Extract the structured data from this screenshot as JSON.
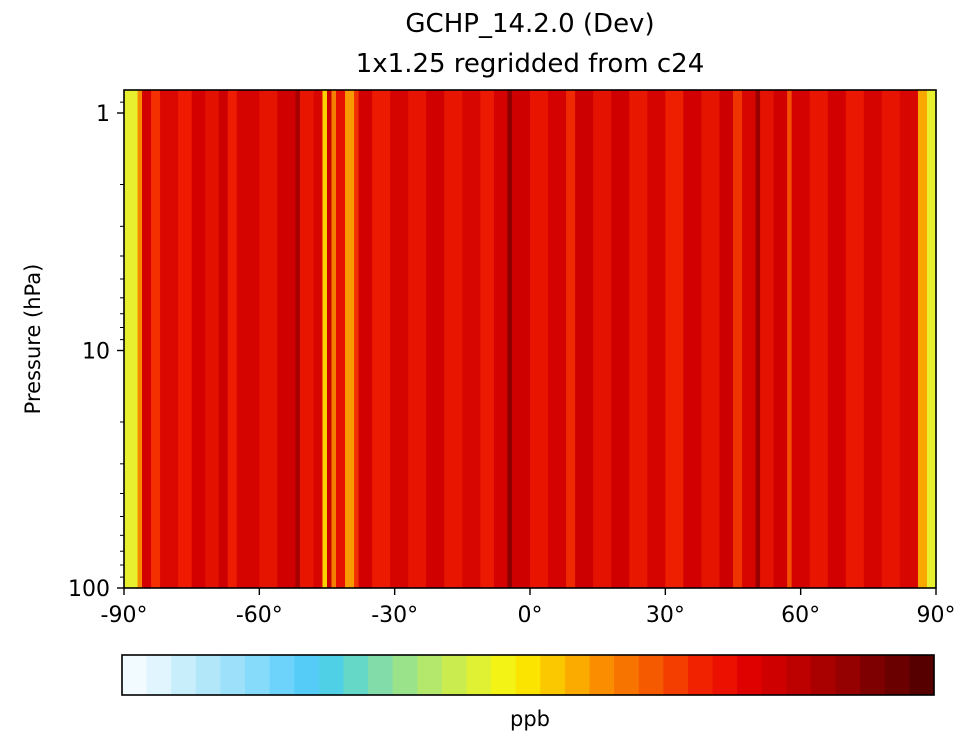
{
  "chart_data": {
    "type": "heatmap",
    "title": "GCHP_14.2.0 (Dev)",
    "subtitle": "1x1.25 regridded from c24",
    "xlabel": "",
    "ylabel": "Pressure (hPa)",
    "x_scale": "linear",
    "y_scale": "log",
    "xlim": [
      -90,
      90
    ],
    "ylim": [
      100,
      0.8
    ],
    "x_ticks": [
      -90,
      -60,
      -30,
      0,
      30,
      60,
      90
    ],
    "x_tick_labels": [
      "-90°",
      "-60°",
      "-30°",
      "0°",
      "30°",
      "60°",
      "90°"
    ],
    "y_ticks": [
      1,
      10,
      100
    ],
    "y_tick_labels": [
      "1",
      "10",
      "100"
    ],
    "grid": false,
    "colorbar": {
      "label": "ppb",
      "orientation": "horizontal",
      "location": "bottom",
      "colors": [
        "#f2fbff",
        "#e0f5fd",
        "#c9eefb",
        "#b2e7fa",
        "#9ce0f9",
        "#86dafa",
        "#6dd3fa",
        "#55ccf8",
        "#4fd0e6",
        "#66d8c8",
        "#82dca9",
        "#9be38a",
        "#b3e86c",
        "#cbec4f",
        "#e0f032",
        "#f3f315",
        "#fbe400",
        "#fbc800",
        "#fbaa00",
        "#fb8e00",
        "#f87400",
        "#f55a00",
        "#f33e00",
        "#f02200",
        "#ec1000",
        "#df0000",
        "#cf0000",
        "#bd0000",
        "#a90000",
        "#950000",
        "#7f0000",
        "#6a0000",
        "#560000"
      ]
    },
    "columns": [
      {
        "lon_start": -90,
        "lon_end": -87,
        "color": "#e8ef2e"
      },
      {
        "lon_start": -87,
        "lon_end": -86,
        "color": "#f58a00"
      },
      {
        "lon_start": -86,
        "lon_end": -84,
        "color": "#d20000"
      },
      {
        "lon_start": -84,
        "lon_end": -82,
        "color": "#f53000"
      },
      {
        "lon_start": -82,
        "lon_end": -78,
        "color": "#da0800"
      },
      {
        "lon_start": -78,
        "lon_end": -75,
        "color": "#ef1a00"
      },
      {
        "lon_start": -75,
        "lon_end": -72,
        "color": "#d40000"
      },
      {
        "lon_start": -72,
        "lon_end": -69,
        "color": "#e31200"
      },
      {
        "lon_start": -69,
        "lon_end": -67,
        "color": "#cc0000"
      },
      {
        "lon_start": -67,
        "lon_end": -65,
        "color": "#ee1c00"
      },
      {
        "lon_start": -65,
        "lon_end": -60,
        "color": "#d60400"
      },
      {
        "lon_start": -60,
        "lon_end": -56,
        "color": "#e51400"
      },
      {
        "lon_start": -56,
        "lon_end": -52,
        "color": "#d00000"
      },
      {
        "lon_start": -52,
        "lon_end": -51,
        "color": "#a60000"
      },
      {
        "lon_start": -51,
        "lon_end": -48,
        "color": "#e81600"
      },
      {
        "lon_start": -48,
        "lon_end": -46,
        "color": "#d80600"
      },
      {
        "lon_start": -46,
        "lon_end": -45,
        "color": "#fbd200"
      },
      {
        "lon_start": -45,
        "lon_end": -44,
        "color": "#c80000"
      },
      {
        "lon_start": -44,
        "lon_end": -43,
        "color": "#f58000"
      },
      {
        "lon_start": -43,
        "lon_end": -41,
        "color": "#e61000"
      },
      {
        "lon_start": -41,
        "lon_end": -39,
        "color": "#f89a00"
      },
      {
        "lon_start": -39,
        "lon_end": -38,
        "color": "#f03000"
      },
      {
        "lon_start": -38,
        "lon_end": -35,
        "color": "#d20000"
      },
      {
        "lon_start": -35,
        "lon_end": -31,
        "color": "#eb1a00"
      },
      {
        "lon_start": -31,
        "lon_end": -27,
        "color": "#d60400"
      },
      {
        "lon_start": -27,
        "lon_end": -23,
        "color": "#e61400"
      },
      {
        "lon_start": -23,
        "lon_end": -19,
        "color": "#d00000"
      },
      {
        "lon_start": -19,
        "lon_end": -15,
        "color": "#e81600"
      },
      {
        "lon_start": -15,
        "lon_end": -11,
        "color": "#d80600"
      },
      {
        "lon_start": -11,
        "lon_end": -8,
        "color": "#ec1a00"
      },
      {
        "lon_start": -8,
        "lon_end": -5,
        "color": "#d40200"
      },
      {
        "lon_start": -5,
        "lon_end": -4,
        "color": "#8a0000"
      },
      {
        "lon_start": -4,
        "lon_end": 0,
        "color": "#cf0000"
      },
      {
        "lon_start": 0,
        "lon_end": 4,
        "color": "#e81400"
      },
      {
        "lon_start": 4,
        "lon_end": 8,
        "color": "#d40200"
      },
      {
        "lon_start": 8,
        "lon_end": 10,
        "color": "#f02a00"
      },
      {
        "lon_start": 10,
        "lon_end": 14,
        "color": "#cc0000"
      },
      {
        "lon_start": 14,
        "lon_end": 18,
        "color": "#e41200"
      },
      {
        "lon_start": 18,
        "lon_end": 22,
        "color": "#d00000"
      },
      {
        "lon_start": 22,
        "lon_end": 26,
        "color": "#e81800"
      },
      {
        "lon_start": 26,
        "lon_end": 30,
        "color": "#d60400"
      },
      {
        "lon_start": 30,
        "lon_end": 34,
        "color": "#ee1e00"
      },
      {
        "lon_start": 34,
        "lon_end": 38,
        "color": "#d20000"
      },
      {
        "lon_start": 38,
        "lon_end": 42,
        "color": "#e51400"
      },
      {
        "lon_start": 42,
        "lon_end": 45,
        "color": "#cc0000"
      },
      {
        "lon_start": 45,
        "lon_end": 47,
        "color": "#f03400"
      },
      {
        "lon_start": 47,
        "lon_end": 50,
        "color": "#d80600"
      },
      {
        "lon_start": 50,
        "lon_end": 51,
        "color": "#9a0000"
      },
      {
        "lon_start": 51,
        "lon_end": 54,
        "color": "#e41200"
      },
      {
        "lon_start": 54,
        "lon_end": 57,
        "color": "#d00000"
      },
      {
        "lon_start": 57,
        "lon_end": 58,
        "color": "#f25000"
      },
      {
        "lon_start": 58,
        "lon_end": 62,
        "color": "#d40200"
      },
      {
        "lon_start": 62,
        "lon_end": 66,
        "color": "#e81600"
      },
      {
        "lon_start": 66,
        "lon_end": 70,
        "color": "#d20000"
      },
      {
        "lon_start": 70,
        "lon_end": 74,
        "color": "#ea1800"
      },
      {
        "lon_start": 74,
        "lon_end": 78,
        "color": "#d60400"
      },
      {
        "lon_start": 78,
        "lon_end": 82,
        "color": "#e61400"
      },
      {
        "lon_start": 82,
        "lon_end": 86,
        "color": "#d80600"
      },
      {
        "lon_start": 86,
        "lon_end": 88,
        "color": "#f8a800"
      },
      {
        "lon_start": 88,
        "lon_end": 90,
        "color": "#e8ef2e"
      }
    ]
  }
}
